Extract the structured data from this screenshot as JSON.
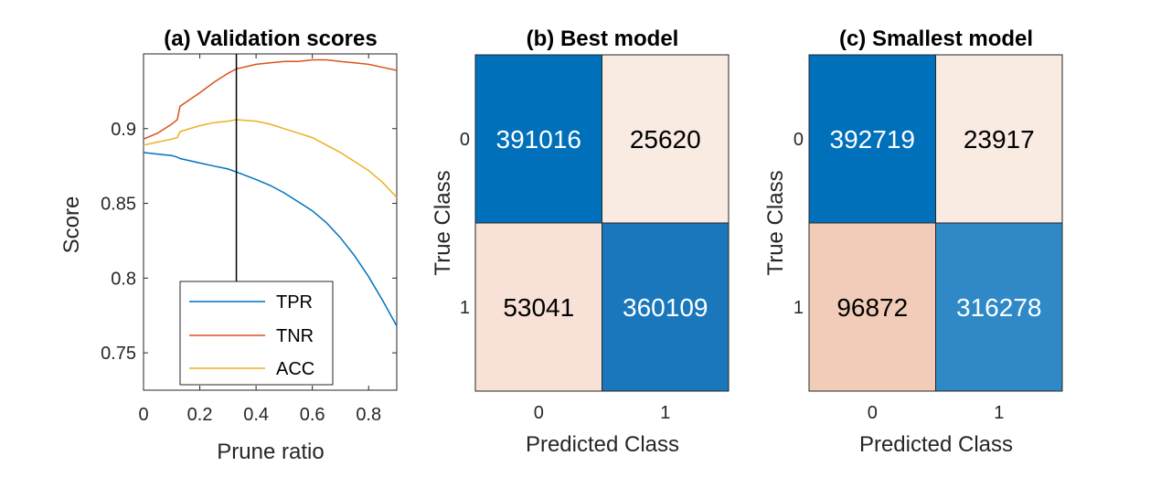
{
  "chart_data": [
    {
      "type": "line",
      "title": "(a) Validation scores",
      "xlabel": "Prune ratio",
      "ylabel": "Score",
      "xlim": [
        0,
        0.9
      ],
      "ylim": [
        0.725,
        0.95
      ],
      "xticks": [
        "0",
        "0.2",
        "0.4",
        "0.6",
        "0.8"
      ],
      "yticks": [
        "0.75",
        "0.8",
        "0.85",
        "0.9"
      ],
      "vline": 0.33,
      "legend_position": "bottom-center",
      "x": [
        0,
        0.05,
        0.1,
        0.12,
        0.13,
        0.2,
        0.25,
        0.3,
        0.33,
        0.4,
        0.45,
        0.5,
        0.55,
        0.6,
        0.65,
        0.7,
        0.75,
        0.8,
        0.85,
        0.9
      ],
      "series": [
        {
          "name": "TPR",
          "color": "#0072BD",
          "values": [
            0.884,
            0.883,
            0.882,
            0.881,
            0.88,
            0.877,
            0.875,
            0.873,
            0.871,
            0.866,
            0.862,
            0.857,
            0.851,
            0.845,
            0.837,
            0.827,
            0.815,
            0.801,
            0.785,
            0.768
          ]
        },
        {
          "name": "TNR",
          "color": "#D95319",
          "values": [
            0.893,
            0.897,
            0.903,
            0.906,
            0.915,
            0.924,
            0.931,
            0.937,
            0.94,
            0.943,
            0.944,
            0.945,
            0.945,
            0.946,
            0.946,
            0.945,
            0.944,
            0.943,
            0.941,
            0.939
          ]
        },
        {
          "name": "ACC",
          "color": "#EDB120",
          "values": [
            0.889,
            0.891,
            0.893,
            0.894,
            0.898,
            0.902,
            0.904,
            0.905,
            0.906,
            0.905,
            0.903,
            0.9,
            0.897,
            0.894,
            0.889,
            0.884,
            0.878,
            0.872,
            0.864,
            0.854
          ]
        }
      ]
    },
    {
      "type": "heatmap",
      "title": "(b) Best model",
      "xlabel": "Predicted Class",
      "ylabel": "True Class",
      "x_categories": [
        "0",
        "1"
      ],
      "y_categories": [
        "0",
        "1"
      ],
      "values": [
        [
          391016,
          25620
        ],
        [
          53041,
          360109
        ]
      ],
      "cell_colors": [
        [
          "#0070BA",
          "#F9EAE2"
        ],
        [
          "#F8E1D6",
          "#1A77BC"
        ]
      ],
      "text_colors": [
        [
          "#ffffff",
          "#000000"
        ],
        [
          "#000000",
          "#ffffff"
        ]
      ]
    },
    {
      "type": "heatmap",
      "title": "(c) Smallest model",
      "xlabel": "Predicted Class",
      "ylabel": "True Class",
      "x_categories": [
        "0",
        "1"
      ],
      "y_categories": [
        "0",
        "1"
      ],
      "values": [
        [
          392719,
          23917
        ],
        [
          96872,
          316278
        ]
      ],
      "cell_colors": [
        [
          "#0070BA",
          "#F9EAE2"
        ],
        [
          "#F1CDB9",
          "#2F89C7"
        ]
      ],
      "text_colors": [
        [
          "#ffffff",
          "#000000"
        ],
        [
          "#000000",
          "#ffffff"
        ]
      ]
    }
  ]
}
